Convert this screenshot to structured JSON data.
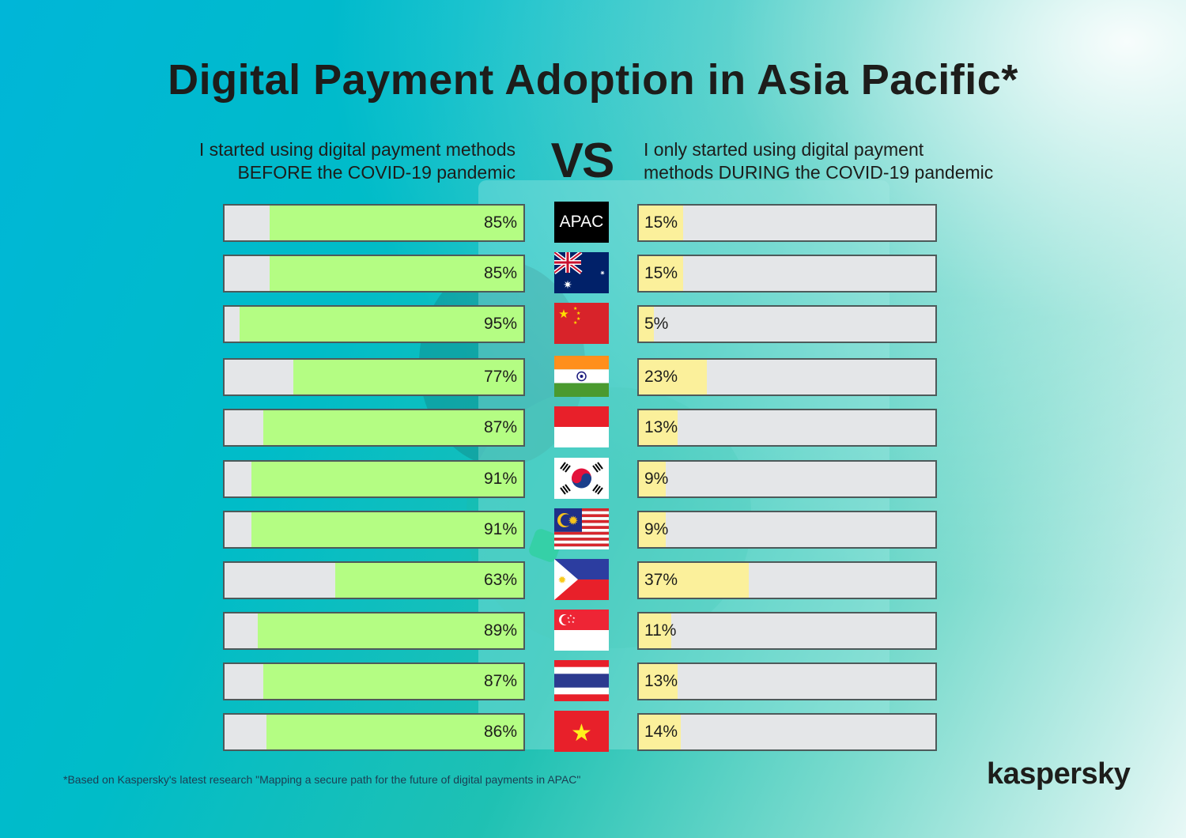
{
  "title": "Digital Payment Adoption in Asia Pacific*",
  "subtitle_left": [
    "I started using digital payment methods",
    "BEFORE the COVID-19 pandemic"
  ],
  "vs_label": "VS",
  "subtitle_right": [
    "I only started using digital payment",
    "methods DURING the COVID-19 pandemic"
  ],
  "colors": {
    "before_fill": "#b4fd83",
    "during_fill": "#fbf09b",
    "track": "#e4e6e8",
    "border": "#4d5a5a"
  },
  "rows": [
    {
      "region": "APAC",
      "flag_icon": "apac-badge",
      "before": 85,
      "before_label": "85%",
      "during": 15,
      "during_label": "15%"
    },
    {
      "region": "Australia",
      "flag_icon": "australia-flag-icon",
      "before": 85,
      "before_label": "85%",
      "during": 15,
      "during_label": "15%"
    },
    {
      "region": "China",
      "flag_icon": "china-flag-icon",
      "before": 95,
      "before_label": "95%",
      "during": 5,
      "during_label": "5%"
    },
    {
      "region": "India",
      "flag_icon": "india-flag-icon",
      "before": 77,
      "before_label": "77%",
      "during": 23,
      "during_label": "23%"
    },
    {
      "region": "Indonesia",
      "flag_icon": "indonesia-flag-icon",
      "before": 87,
      "before_label": "87%",
      "during": 13,
      "during_label": "13%"
    },
    {
      "region": "South Korea",
      "flag_icon": "south-korea-flag-icon",
      "before": 91,
      "before_label": "91%",
      "during": 9,
      "during_label": "9%"
    },
    {
      "region": "Malaysia",
      "flag_icon": "malaysia-flag-icon",
      "before": 91,
      "before_label": "91%",
      "during": 9,
      "during_label": "9%"
    },
    {
      "region": "Philippines",
      "flag_icon": "philippines-flag-icon",
      "before": 63,
      "before_label": "63%",
      "during": 37,
      "during_label": "37%"
    },
    {
      "region": "Singapore",
      "flag_icon": "singapore-flag-icon",
      "before": 89,
      "before_label": "89%",
      "during": 11,
      "during_label": "11%"
    },
    {
      "region": "Thailand",
      "flag_icon": "thailand-flag-icon",
      "before": 87,
      "before_label": "87%",
      "during": 13,
      "during_label": "13%"
    },
    {
      "region": "Vietnam",
      "flag_icon": "vietnam-flag-icon",
      "before": 86,
      "before_label": "86%",
      "during": 14,
      "during_label": "14%"
    }
  ],
  "footnote": "*Based on Kaspersky's latest research \"Mapping a secure path for the future of digital payments in APAC\"",
  "logo": "kaspersky",
  "chart_data": {
    "type": "bar",
    "orientation": "horizontal",
    "title": "Digital Payment Adoption in Asia Pacific*",
    "categories": [
      "APAC",
      "Australia",
      "China",
      "India",
      "Indonesia",
      "South Korea",
      "Malaysia",
      "Philippines",
      "Singapore",
      "Thailand",
      "Vietnam"
    ],
    "series": [
      {
        "name": "I started using digital payment methods BEFORE the COVID-19 pandemic",
        "values": [
          85,
          85,
          95,
          77,
          87,
          91,
          91,
          63,
          89,
          87,
          86
        ],
        "color": "#b4fd83"
      },
      {
        "name": "I only started using digital payment methods DURING the COVID-19 pandemic",
        "values": [
          15,
          15,
          5,
          23,
          13,
          9,
          9,
          37,
          11,
          13,
          14
        ],
        "color": "#fbf09b"
      }
    ],
    "xlabel": "",
    "ylabel": "",
    "xlim": [
      0,
      100
    ],
    "unit": "%",
    "grid": false,
    "legend_position": "top (column headers)",
    "annotations": [
      "VS",
      "*Based on Kaspersky's latest research \"Mapping a secure path for the future of digital payments in APAC\""
    ]
  }
}
